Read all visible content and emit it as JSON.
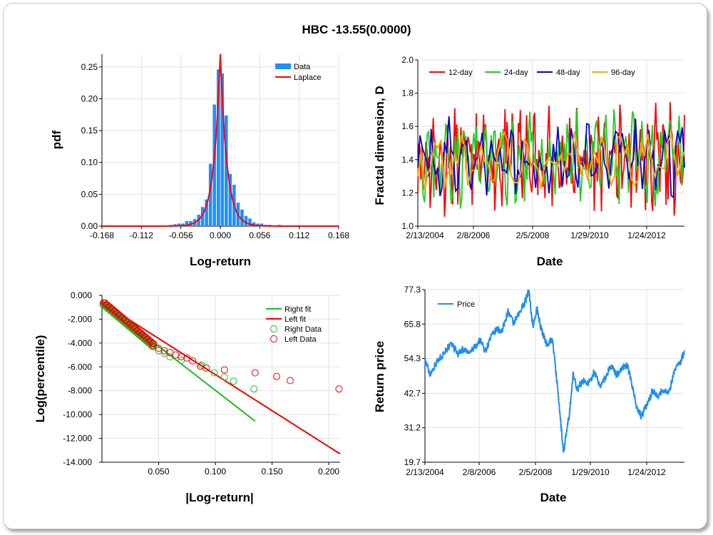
{
  "page": {
    "title": "HBC -13.55(0.0000)"
  },
  "chart_data": [
    {
      "type": "bar",
      "xlabel": "Log-return",
      "ylabel": "pdf",
      "xlim": [
        -0.168,
        0.168
      ],
      "ylim": [
        0,
        0.27
      ],
      "x_ticks": [
        "-0.168",
        "-0.112",
        "-0.056",
        "0.000",
        "0.056",
        "0.112",
        "0.168"
      ],
      "y_ticks": [
        "0.00",
        "0.05",
        "0.10",
        "0.15",
        "0.20",
        "0.25"
      ],
      "legend_position": "top-right",
      "series": [
        {
          "name": "Data",
          "color": "#1e90ff",
          "bin_width": 0.0056,
          "x": [
            -0.098,
            -0.087,
            -0.07,
            -0.0644,
            -0.0588,
            -0.0532,
            -0.0476,
            -0.042,
            -0.0364,
            -0.0308,
            -0.0252,
            -0.0196,
            -0.014,
            -0.0084,
            -0.0028,
            0.0028,
            0.0084,
            0.014,
            0.0196,
            0.0252,
            0.0308,
            0.0364,
            0.042,
            0.0476,
            0.0532,
            0.0588,
            0.0644,
            0.07,
            0.084,
            0.1
          ],
          "values": [
            0.001,
            0.001,
            0.002,
            0.003,
            0.004,
            0.004,
            0.008,
            0.008,
            0.011,
            0.018,
            0.03,
            0.042,
            0.098,
            0.191,
            0.246,
            0.24,
            0.174,
            0.082,
            0.065,
            0.037,
            0.026,
            0.016,
            0.012,
            0.006,
            0.004,
            0.004,
            0.002,
            0.002,
            0.002,
            0.001
          ]
        },
        {
          "name": "Laplace",
          "color": "#ff0000",
          "function": "laplace",
          "peak": 0.272,
          "scale": 0.0093
        }
      ]
    },
    {
      "type": "line",
      "xlabel": "Date",
      "ylabel": "Fractal dimension, D",
      "ylim": [
        1.0,
        2.0
      ],
      "x_ticks": [
        "2/13/2004",
        "2/8/2006",
        "2/5/2008",
        "1/29/2010",
        "1/24/2012"
      ],
      "y_ticks": [
        "1.0",
        "1.2",
        "1.4",
        "1.6",
        "1.8",
        "2.0"
      ],
      "legend_position": "top",
      "series": [
        {
          "name": "12-day",
          "color": "#ff0000"
        },
        {
          "name": "24-day",
          "color": "#22cc22"
        },
        {
          "name": "48-day",
          "color": "#0000cc"
        },
        {
          "name": "96-day",
          "color": "#ffa500"
        }
      ]
    },
    {
      "type": "scatter",
      "xlabel": "|Log-return|",
      "ylabel": "Log(percentile)",
      "xlim": [
        0,
        0.21
      ],
      "ylim": [
        -14,
        0
      ],
      "x_ticks": [
        "0.050",
        "0.100",
        "0.150",
        "0.200"
      ],
      "y_ticks": [
        "0.000",
        "-2.000",
        "-4.000",
        "-6.000",
        "-8.000",
        "-10.000",
        "-12.000",
        "-14.000"
      ],
      "legend_position": "top-right",
      "series": [
        {
          "name": "Right fit",
          "color": "#22bb22",
          "kind": "line",
          "x": [
            0.0,
            0.135
          ],
          "y": [
            -0.6,
            -10.55
          ]
        },
        {
          "name": "Left fit",
          "color": "#ee0000",
          "kind": "line",
          "x": [
            0.0,
            0.21
          ],
          "y": [
            -0.6,
            -13.3
          ]
        },
        {
          "name": "Right Data",
          "color": "#22bb22",
          "kind": "points",
          "x": [
            0.05,
            0.055,
            0.06,
            0.07,
            0.088,
            0.099,
            0.108,
            0.116,
            0.134
          ],
          "y": [
            -4.65,
            -4.85,
            -5.15,
            -5.45,
            -5.85,
            -6.5,
            -6.85,
            -7.2,
            -7.85
          ]
        },
        {
          "name": "Left Data",
          "color": "#ee0000",
          "kind": "points",
          "x": [
            0.045,
            0.05,
            0.055,
            0.06,
            0.065,
            0.07,
            0.075,
            0.08,
            0.087,
            0.092,
            0.108,
            0.135,
            0.154,
            0.166,
            0.209
          ],
          "y": [
            -4.3,
            -4.45,
            -4.65,
            -4.8,
            -5.0,
            -5.15,
            -5.25,
            -5.5,
            -5.95,
            -6.1,
            -6.25,
            -6.5,
            -6.8,
            -7.15,
            -7.85
          ]
        }
      ]
    },
    {
      "type": "line",
      "xlabel": "Date",
      "ylabel": "Return price",
      "ylim": [
        19.7,
        77.3
      ],
      "x_ticks": [
        "2/13/2004",
        "2/8/2006",
        "2/5/2008",
        "1/29/2010",
        "1/24/2012"
      ],
      "y_ticks": [
        "77.3",
        "65.8",
        "54.3",
        "42.7",
        "31.2",
        "19.7"
      ],
      "legend_position": "top-left",
      "series": [
        {
          "name": "Price",
          "color": "#1e8ef0",
          "x": [
            2004.12,
            2004.3,
            2004.5,
            2004.7,
            2004.9,
            2005.1,
            2005.3,
            2005.5,
            2005.7,
            2005.9,
            2006.1,
            2006.3,
            2006.5,
            2006.7,
            2006.9,
            2007.1,
            2007.3,
            2007.5,
            2007.7,
            2007.85,
            2008.0,
            2008.15,
            2008.3,
            2008.5,
            2008.7,
            2008.85,
            2009.0,
            2009.1,
            2009.2,
            2009.3,
            2009.45,
            2009.6,
            2009.8,
            2010.0,
            2010.2,
            2010.4,
            2010.6,
            2010.8,
            2011.0,
            2011.2,
            2011.4,
            2011.6,
            2011.75,
            2011.9,
            2012.1,
            2012.3,
            2012.5,
            2012.7,
            2012.9,
            2013.1,
            2013.3,
            2013.45
          ],
          "values": [
            54.0,
            49.0,
            52.5,
            55.0,
            57.5,
            59.0,
            56.0,
            57.5,
            56.0,
            58.0,
            60.5,
            57.0,
            61.5,
            64.0,
            63.5,
            70.0,
            66.0,
            69.0,
            73.0,
            77.0,
            65.0,
            71.0,
            64.0,
            59.0,
            61.0,
            48.0,
            33.0,
            23.0,
            29.0,
            35.0,
            49.0,
            44.0,
            47.0,
            46.0,
            50.0,
            45.0,
            48.0,
            52.0,
            49.0,
            51.0,
            52.0,
            44.0,
            37.5,
            35.0,
            39.0,
            43.5,
            42.0,
            44.0,
            43.0,
            51.0,
            53.0,
            57.0
          ]
        }
      ]
    }
  ]
}
